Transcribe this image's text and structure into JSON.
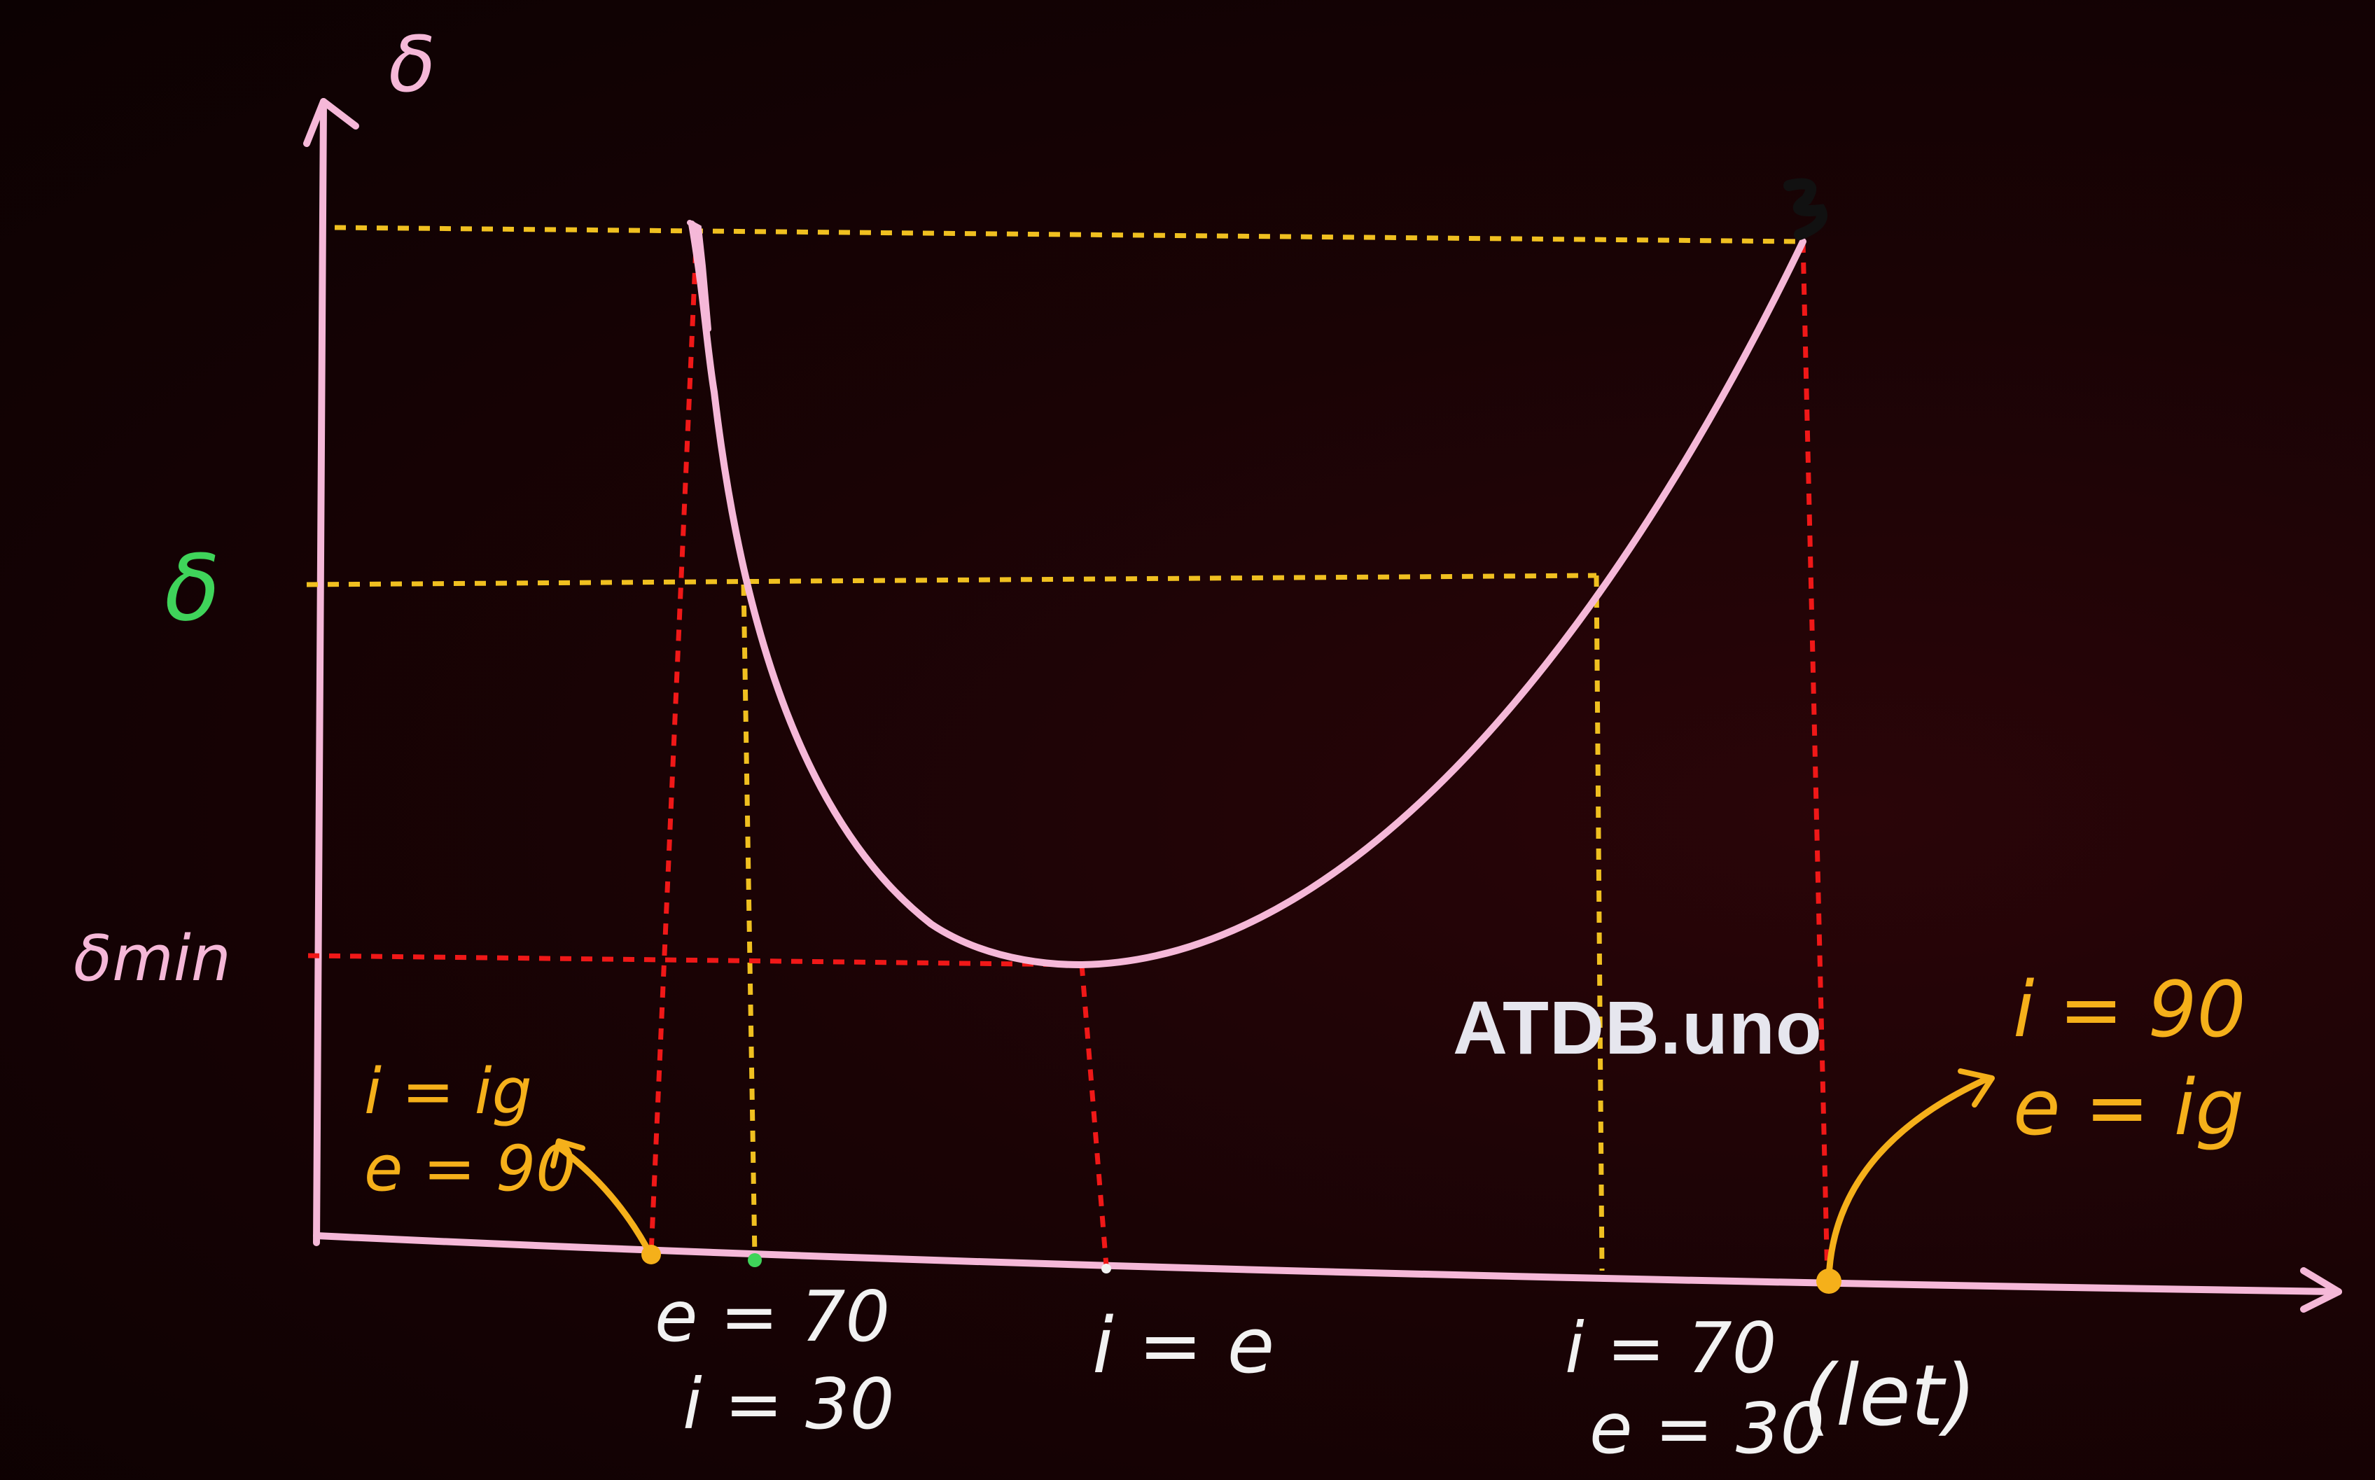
{
  "labels": {
    "y_axis": "δ",
    "delta_level": "δ",
    "delta_min": "δmin",
    "left_grazing_i": "i = ig",
    "left_grazing_e": "e = 90",
    "right_grazing_i": "i = 90",
    "right_grazing_e": "e = ig",
    "left_pair_e": "e = 70",
    "left_pair_i": "i = 30",
    "min_point": "i = e",
    "right_pair_i": "i = 70",
    "right_pair_e": "e = 30",
    "right_pair_note": "(let)"
  },
  "watermark": "ATDB.uno",
  "colors": {
    "curve": "#f5b8d8",
    "axis": "#f5b8d8",
    "guide_yellow": "#f0c020",
    "guide_red": "#f01818",
    "label_green": "#3fd45a",
    "label_orange": "#f5b01a",
    "label_white": "#f2f2f2"
  }
}
